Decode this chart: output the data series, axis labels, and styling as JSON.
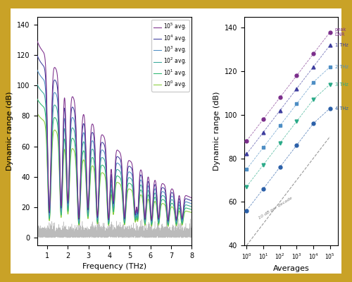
{
  "left_plot": {
    "xlabel": "Frequency (THz)",
    "ylabel": "Dynamic range (dB)",
    "xlim": [
      0.5,
      8.0
    ],
    "ylim": [
      -5,
      145
    ],
    "yticks": [
      0,
      20,
      40,
      60,
      80,
      100,
      120,
      140
    ],
    "xticks": [
      1,
      2,
      3,
      4,
      5,
      6,
      7,
      8
    ],
    "colors": [
      "#7b2d8b",
      "#3d3d9e",
      "#4e8ec4",
      "#38a89a",
      "#2db870",
      "#8acc38"
    ],
    "legend_labels": [
      "$10^5$ avg.",
      "$10^4$ avg.",
      "$10^3$ avg.",
      "$10^2$ avg.",
      "$10^1$ avg.",
      "$10^0$ avg."
    ],
    "base_peaks": [
      136,
      126,
      116,
      106,
      96,
      86
    ],
    "avg_counts": [
      100000,
      10000,
      1000,
      100,
      10,
      1
    ]
  },
  "right_plot": {
    "xlabel": "Averages",
    "ylabel": "Dynamic range (dB)",
    "ylim": [
      40,
      145
    ],
    "yticks": [
      40,
      60,
      80,
      100,
      120,
      140
    ],
    "averages": [
      1,
      10,
      100,
      1000,
      10000,
      100000
    ],
    "series": [
      {
        "label": "peak\nDNR",
        "short": "peak\nDNR",
        "color": "#7b2d8b",
        "marker": "o",
        "values": [
          88,
          98,
          108,
          118,
          128,
          138
        ]
      },
      {
        "label": "1 THz",
        "short": "1 THz",
        "color": "#3d3d9e",
        "marker": "^",
        "values": [
          82,
          92,
          102,
          112,
          122,
          132
        ]
      },
      {
        "label": "2 THz",
        "short": "2 THz",
        "color": "#4e8ec4",
        "marker": "s",
        "values": [
          75,
          85,
          95,
          105,
          115,
          122
        ]
      },
      {
        "label": "3 THz",
        "short": "3 THz",
        "color": "#2aaa88",
        "marker": "v",
        "values": [
          67,
          77,
          87,
          97,
          107,
          114
        ]
      },
      {
        "label": "4 THz",
        "short": "4 THz",
        "color": "#2a5fa8",
        "marker": "o",
        "values": [
          56,
          66,
          76,
          86,
          96,
          103
        ]
      }
    ],
    "ref_annotation": "10 dB per decade",
    "ref_rotation": 32
  },
  "figure": {
    "bg_color": "#f5eecc",
    "border_color": "#c9a227",
    "plot_bg": "#f5eecc"
  }
}
